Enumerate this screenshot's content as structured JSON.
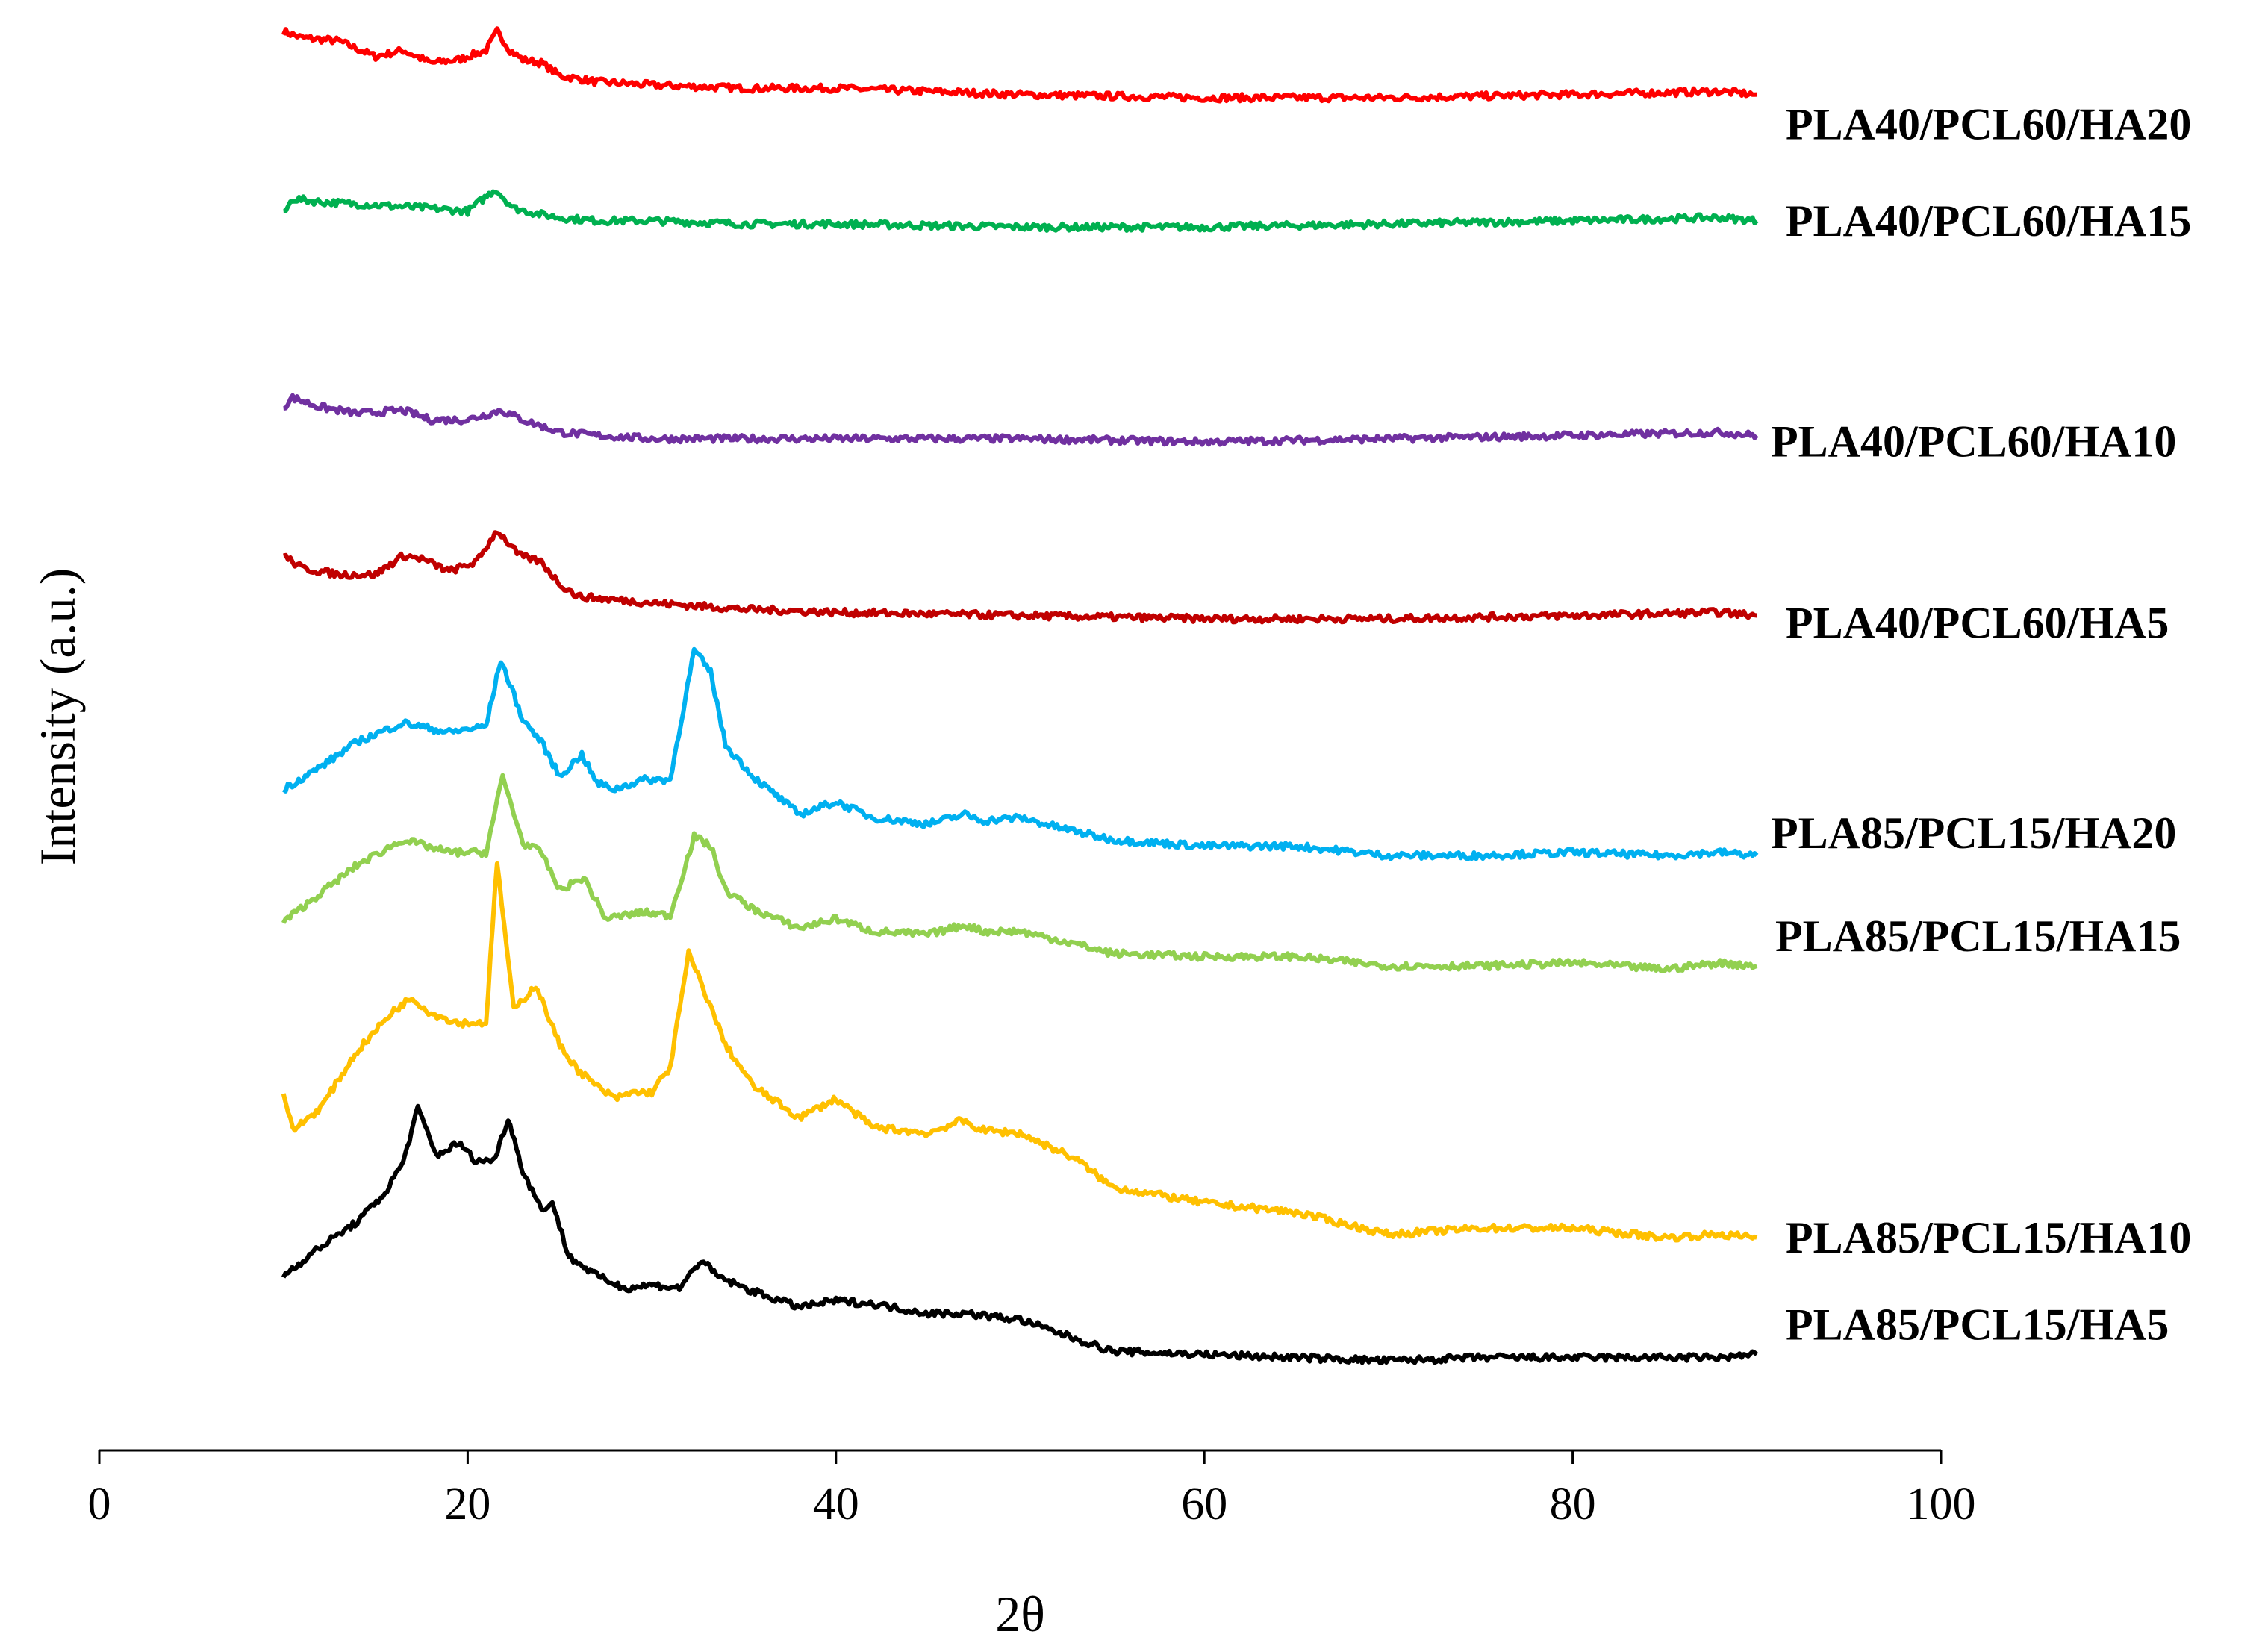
{
  "chart_data": {
    "type": "line",
    "title": "",
    "xlabel": "2θ",
    "ylabel": "Intensity (a.u.)",
    "xlim": [
      0,
      100
    ],
    "x_ticks": [
      "0",
      "20",
      "40",
      "60",
      "80",
      "100"
    ],
    "y_ticks_shown": false,
    "grid": false,
    "legend": "inline labels at right end of each trace",
    "x_range_of_data": [
      10,
      90
    ],
    "series": [
      {
        "name": "PLA40/PCL60/HA20",
        "color": "#ff0000",
        "x": [
          10,
          11,
          13,
          15,
          16.5,
          18,
          19.5,
          21,
          21.6,
          22.3,
          23,
          24,
          25,
          27,
          30,
          35,
          40,
          50,
          60,
          70,
          80,
          88,
          90
        ],
        "y": [
          32.6,
          32.4,
          32.3,
          31.8,
          32.0,
          31.6,
          31.7,
          32.0,
          32.6,
          32.0,
          31.7,
          31.6,
          31.2,
          31.0,
          30.9,
          30.8,
          30.8,
          30.6,
          30.5,
          30.5,
          30.6,
          30.7,
          30.6
        ]
      },
      {
        "name": "PLA40/PCL60/HA15",
        "color": "#00b050",
        "x": [
          10,
          10.5,
          12,
          15,
          18,
          20,
          21.5,
          22.5,
          24,
          25,
          27,
          30,
          35,
          40,
          50,
          60,
          70,
          80,
          88,
          90
        ],
        "y": [
          26.8,
          27.3,
          27.2,
          27.1,
          27.0,
          26.9,
          27.6,
          27.0,
          26.8,
          26.7,
          26.6,
          26.6,
          26.5,
          26.5,
          26.4,
          26.4,
          26.5,
          26.6,
          26.7,
          26.6
        ]
      },
      {
        "name": "PLA40/PCL60/HA10",
        "color": "#7030a0",
        "x": [
          10,
          10.5,
          12,
          14,
          16.5,
          18,
          20,
          21.8,
          23,
          25,
          27,
          30,
          35,
          40,
          50,
          60,
          70,
          80,
          88,
          90
        ],
        "y": [
          20.7,
          21.0,
          20.7,
          20.5,
          20.6,
          20.3,
          20.3,
          20.6,
          20.3,
          19.9,
          19.8,
          19.7,
          19.7,
          19.7,
          19.7,
          19.6,
          19.7,
          19.8,
          19.9,
          19.8
        ]
      },
      {
        "name": "PLA40/PCL60/HA5",
        "color": "#c00000",
        "x": [
          10,
          11,
          13,
          15,
          16.5,
          17.5,
          19,
          20.5,
          21.6,
          22.8,
          24,
          25,
          26,
          28,
          30,
          35,
          40,
          50,
          60,
          70,
          80,
          88,
          90
        ],
        "y": [
          16.0,
          15.6,
          15.4,
          15.4,
          16.0,
          15.9,
          15.5,
          15.8,
          16.8,
          16.0,
          15.8,
          15.1,
          14.7,
          14.6,
          14.5,
          14.3,
          14.2,
          14.1,
          14.0,
          14.0,
          14.1,
          14.2,
          14.1
        ]
      },
      {
        "name": "PLA85/PCL15/HA20",
        "color": "#00b0f0",
        "x": [
          10,
          12,
          14,
          16.5,
          19,
          21,
          21.8,
          23,
          24,
          25,
          26.2,
          27,
          28,
          29.5,
          31,
          32.3,
          33.2,
          34,
          35.5,
          38,
          40,
          42,
          45,
          47,
          48,
          50,
          52,
          53.5,
          55,
          60,
          65,
          70,
          75,
          80,
          85,
          88,
          90
        ],
        "y": [
          8.6,
          9.3,
          10.1,
          10.7,
          10.4,
          10.6,
          12.7,
          10.8,
          10.1,
          9.0,
          9.7,
          8.8,
          8.6,
          8.9,
          8.9,
          13.0,
          12.3,
          10.0,
          9.0,
          7.8,
          8.2,
          7.7,
          7.5,
          7.8,
          7.6,
          7.7,
          7.4,
          7.2,
          7.0,
          6.8,
          6.8,
          6.5,
          6.5,
          6.6,
          6.5,
          6.6,
          6.5
        ]
      },
      {
        "name": "PLA85/PCL15/HA15",
        "color": "#92d050",
        "x": [
          10,
          12,
          14,
          16.5,
          19,
          21,
          21.9,
          23,
          24,
          25,
          26.3,
          27.5,
          29.5,
          31,
          32.3,
          33.2,
          34,
          35.5,
          38,
          40,
          42,
          45,
          47,
          48,
          50,
          53,
          55,
          60,
          65,
          70,
          75,
          80,
          85,
          88,
          90
        ],
        "y": [
          4.4,
          5.3,
          6.2,
          7.0,
          6.6,
          6.6,
          9.0,
          6.9,
          6.6,
          5.4,
          5.8,
          4.5,
          4.7,
          4.6,
          7.1,
          6.8,
          5.4,
          4.8,
          4.2,
          4.5,
          4.1,
          4.0,
          4.3,
          4.1,
          4.1,
          3.7,
          3.4,
          3.3,
          3.3,
          3.0,
          3.0,
          3.1,
          2.9,
          3.1,
          3.0
        ]
      },
      {
        "name": "PLA85/PCL15/HA10",
        "color": "#ffc000",
        "x": [
          10,
          10.5,
          12,
          14,
          16,
          17,
          18,
          19.5,
          21,
          21.6,
          22.5,
          23.7,
          25,
          26,
          27,
          28,
          29,
          30,
          31,
          32,
          33,
          34,
          35.5,
          38,
          40,
          42,
          45,
          46.8,
          48,
          50,
          53,
          55,
          60,
          65,
          70,
          75,
          80,
          85,
          88,
          90
        ],
        "y": [
          -1.0,
          -2.2,
          -1.5,
          0.3,
          1.6,
          2.0,
          1.5,
          1.2,
          1.2,
          6.3,
          1.6,
          2.4,
          0.5,
          -0.3,
          -0.8,
          -1.2,
          -1.0,
          -1.0,
          -0.2,
          3.4,
          2.0,
          0.5,
          -0.8,
          -1.8,
          -1.2,
          -2.1,
          -2.3,
          -1.9,
          -2.2,
          -2.3,
          -3.1,
          -4.0,
          -4.5,
          -4.8,
          -5.5,
          -5.3,
          -5.3,
          -5.6,
          -5.5,
          -5.6
        ]
      },
      {
        "name": "PLA85/PCL15/HA5",
        "color": "#000000",
        "x": [
          10,
          12,
          14,
          15.5,
          16.5,
          17.3,
          18.3,
          19.5,
          20.5,
          21.5,
          22.2,
          23,
          24,
          24.6,
          25.5,
          27,
          28.5,
          30,
          31.5,
          32.7,
          33.5,
          35,
          38,
          40,
          42,
          45,
          47,
          50,
          53,
          55,
          60,
          65,
          70,
          75,
          80,
          85,
          88,
          90
        ],
        "y": [
          -6.8,
          -5.9,
          -5.1,
          -4.2,
          -3.2,
          -1.5,
          -3.0,
          -2.6,
          -3.2,
          -3.1,
          -1.8,
          -3.5,
          -4.7,
          -4.5,
          -6.2,
          -6.8,
          -7.2,
          -7.1,
          -7.2,
          -6.3,
          -6.8,
          -7.2,
          -7.8,
          -7.6,
          -7.7,
          -8.0,
          -8.0,
          -8.2,
          -8.8,
          -9.2,
          -9.3,
          -9.4,
          -9.5,
          -9.4,
          -9.4,
          -9.4,
          -9.4,
          -9.3
        ]
      }
    ]
  }
}
